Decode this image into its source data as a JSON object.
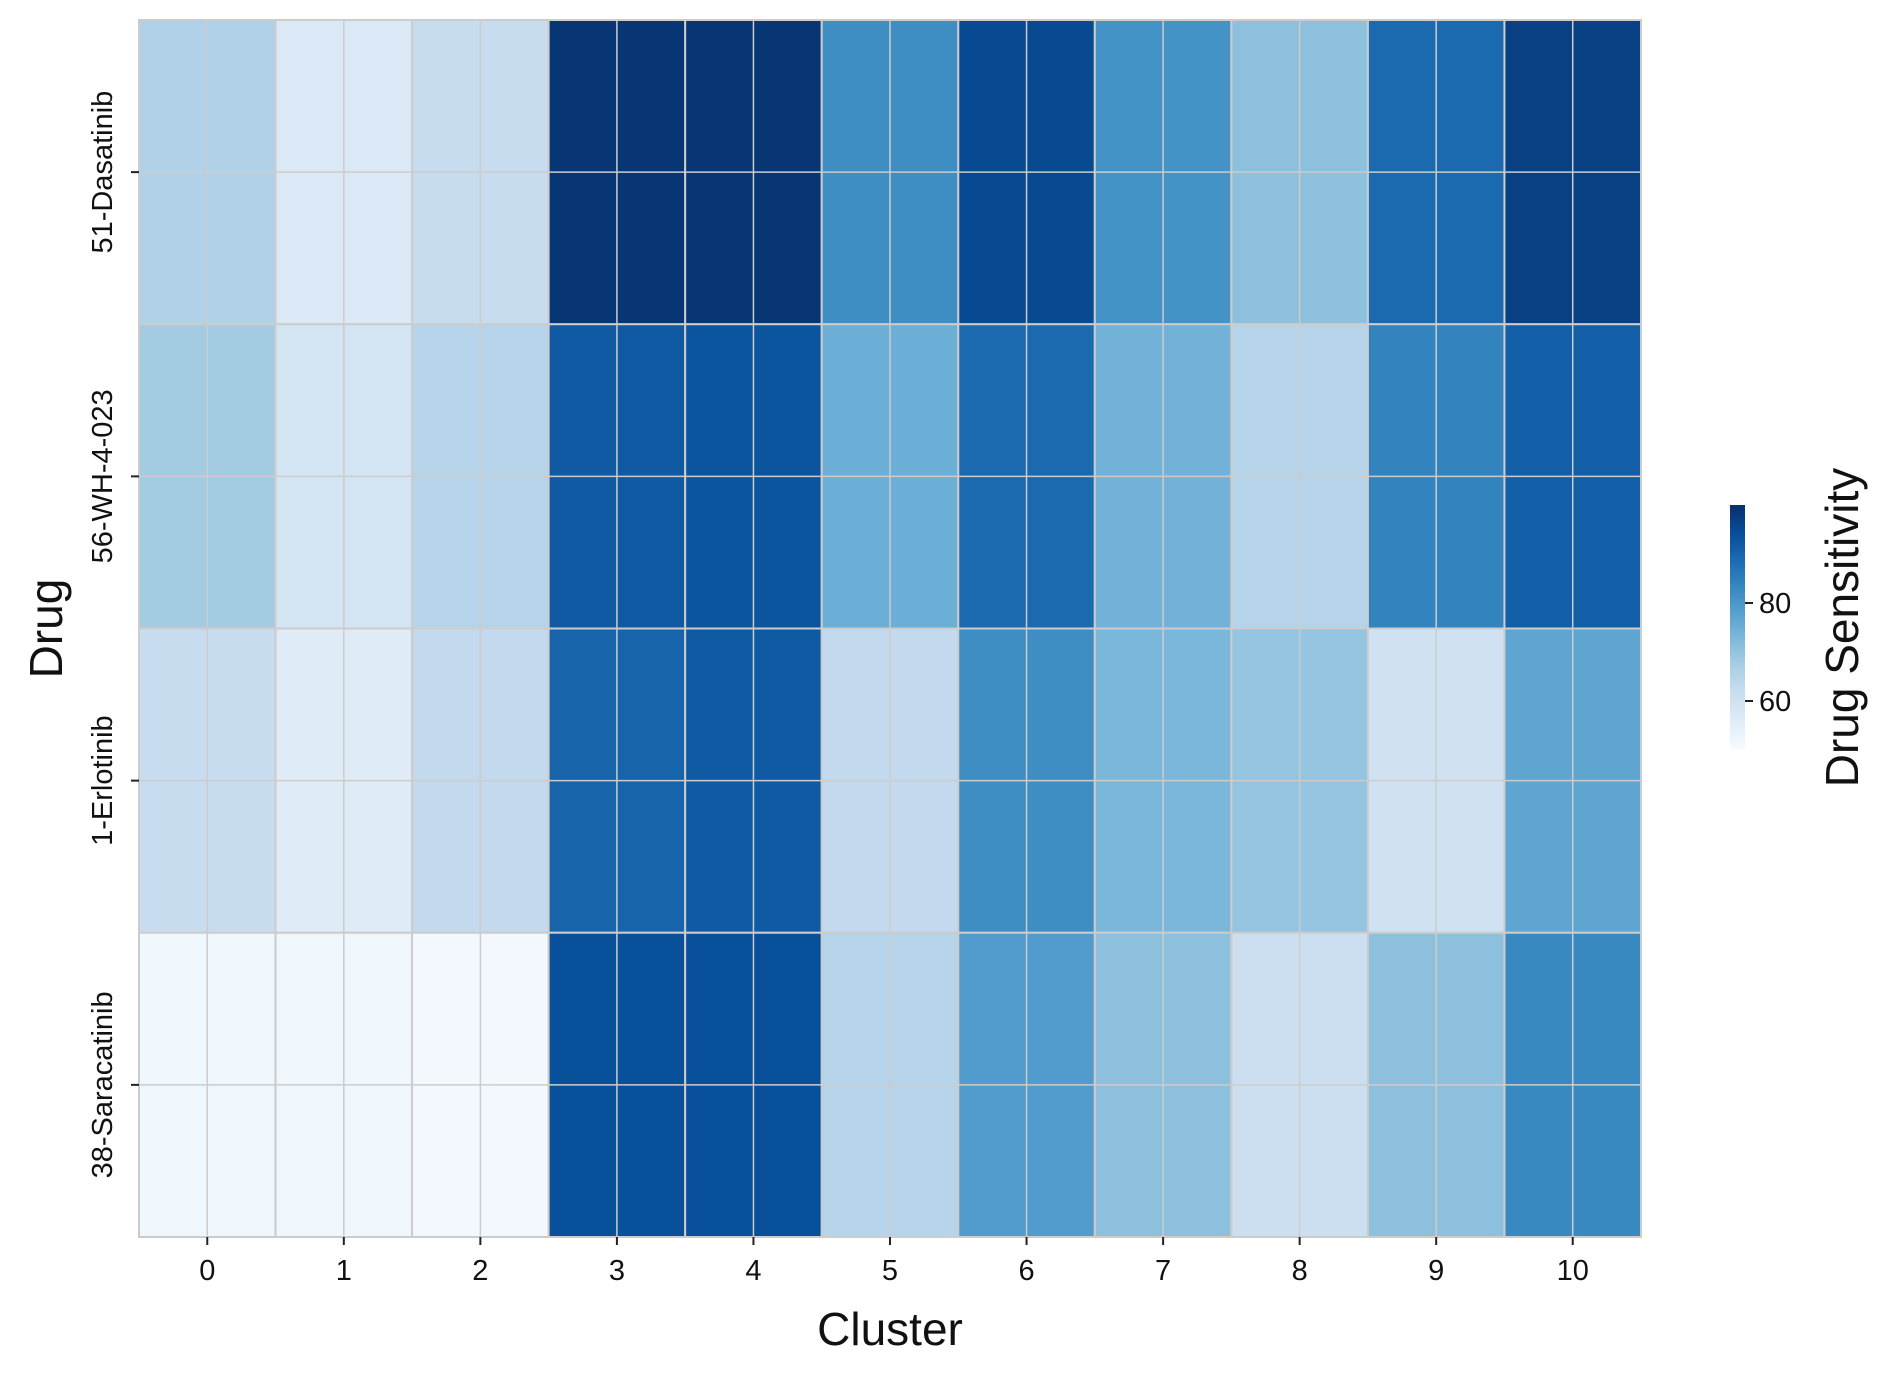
{
  "chart_data": {
    "type": "heatmap",
    "title": "",
    "xlabel": "Cluster",
    "ylabel": "Drug",
    "x_categories": [
      "0",
      "1",
      "2",
      "3",
      "4",
      "5",
      "6",
      "7",
      "8",
      "9",
      "10"
    ],
    "y_categories": [
      "51-Dasatinib",
      "56-WH-4-023",
      "1-Erlotinib",
      "38-Saracatinib"
    ],
    "values": [
      [
        66,
        57,
        62,
        99,
        99,
        82,
        95,
        81,
        71,
        89,
        97
      ],
      [
        68,
        59,
        65,
        92,
        93,
        75,
        89,
        74,
        65,
        84,
        91
      ],
      [
        62,
        56,
        63,
        90,
        92,
        63,
        82,
        73,
        70,
        60,
        77
      ],
      [
        52,
        52,
        51,
        94,
        94,
        65,
        79,
        71,
        61,
        71,
        83
      ]
    ],
    "colormap": "Blues",
    "colorbar": {
      "label": "Drug Sensitivity",
      "ticks": [
        60,
        80
      ],
      "range": [
        50,
        100
      ]
    },
    "grid_color": "#cccccc",
    "legend_position": "right"
  }
}
